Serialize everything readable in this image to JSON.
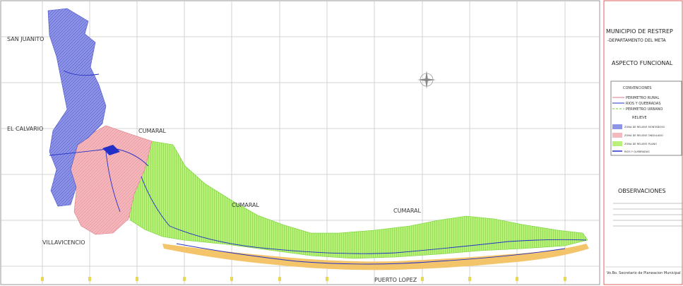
{
  "map": {
    "labels": [
      "SAN JUANITO",
      "EL CALVARIO",
      "CUMARAL",
      "CUMARAL",
      "CUMARAL",
      "VILLAVICENCIO",
      "PUERTO LOPEZ"
    ]
  },
  "panel": {
    "title": "MUNICIPIO DE RESTREP",
    "subtitle": "-DEPARTAMENTO DEL META",
    "heading": "ASPECTO FUNCIONAL",
    "conventions_title": "CONVENCIONES",
    "conventions": [
      "PERIMETRO RURAL",
      "RIOS Y QUEBRADAS",
      "PERIMETRO URBANO"
    ],
    "relief_title": "RELIEVE",
    "relief": [
      "ZONA DE RELIEVE MONTAÑOSO",
      "ZONA DE RELIEVE ONDULADO",
      "ZONA DE RELIEVE PLANO",
      "RIOS Y QUEBRADAS"
    ],
    "observations": "OBSERVACIONES",
    "signature": "Vo.Bo. Secretario de Planeacion Municipal"
  }
}
